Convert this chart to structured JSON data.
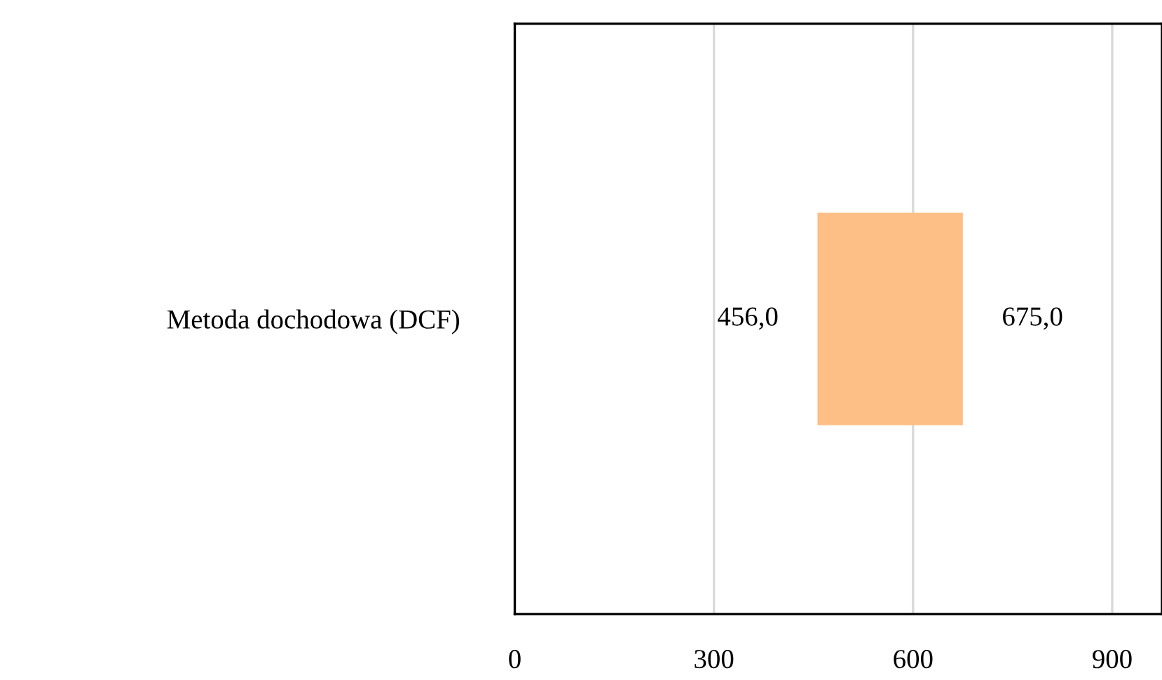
{
  "chart_data": {
    "type": "bar",
    "orientation": "horizontal",
    "categories": [
      "Metoda dochodowa (DCF)"
    ],
    "base": [
      456
    ],
    "values": [
      219
    ],
    "color": "#fdbf86",
    "xlim": [
      0,
      975
    ],
    "xticks": [
      0,
      300,
      600,
      900
    ],
    "grid": "x",
    "legend": false,
    "annotations": [
      {
        "text": "456,0",
        "x": 456,
        "y": "Metoda dochodowa (DCF)"
      },
      {
        "text": "675,0",
        "x": 675,
        "y": "Metoda dochodowa (DCF)"
      }
    ]
  }
}
